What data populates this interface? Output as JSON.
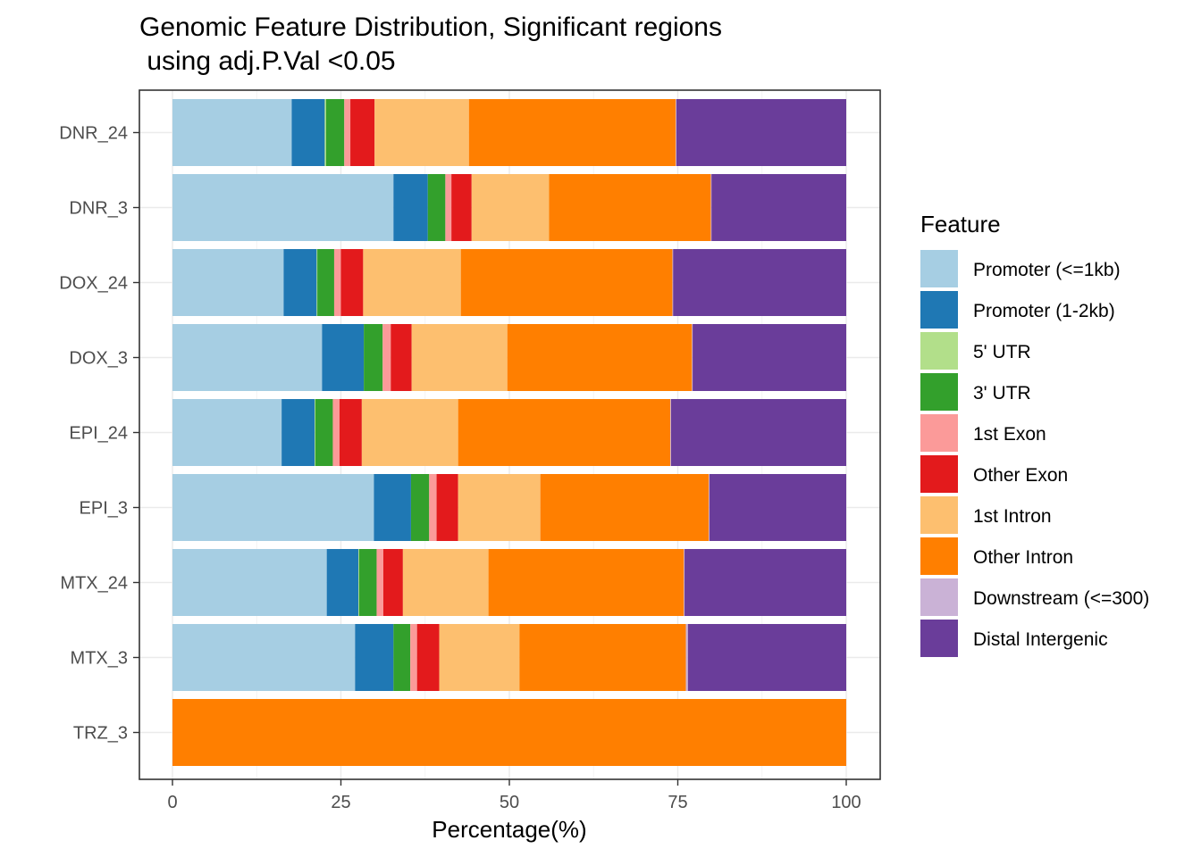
{
  "chart_data": {
    "type": "bar",
    "orientation": "horizontal",
    "stacked": true,
    "title_lines": [
      "Genomic Feature Distribution, Significant regions",
      " using adj.P.Val <0.05"
    ],
    "xlabel": "Percentage(%)",
    "ylabel": "",
    "xlim": [
      0,
      100
    ],
    "x_ticks": [
      "0",
      "25",
      "50",
      "75",
      "100"
    ],
    "x_tick_values": [
      0,
      25,
      50,
      75,
      100
    ],
    "grid": true,
    "legend_position": "right",
    "legend_title": "Feature",
    "categories": [
      "DNR_24",
      "DNR_3",
      "DOX_24",
      "DOX_3",
      "EPI_24",
      "EPI_3",
      "MTX_24",
      "MTX_3",
      "TRZ_3"
    ],
    "series": [
      {
        "name": "Promoter (<=1kb)",
        "color": "#A6CEE3",
        "values": [
          17.7,
          32.8,
          16.5,
          22.2,
          16.2,
          29.9,
          22.9,
          27.1,
          0
        ]
      },
      {
        "name": "Promoter (1-2kb)",
        "color": "#1F78B4",
        "values": [
          4.9,
          5.1,
          4.9,
          6.2,
          4.9,
          5.5,
          4.7,
          5.7,
          0
        ]
      },
      {
        "name": "5' UTR",
        "color": "#B2DF8A",
        "values": [
          0.2,
          0,
          0.1,
          0,
          0.1,
          0,
          0.1,
          0,
          0
        ]
      },
      {
        "name": "3' UTR",
        "color": "#33A02C",
        "values": [
          2.7,
          2.6,
          2.5,
          2.8,
          2.6,
          2.7,
          2.6,
          2.5,
          0
        ]
      },
      {
        "name": "1st Exon",
        "color": "#FB9A99",
        "values": [
          0.9,
          0.9,
          1.0,
          1.2,
          1.0,
          1.1,
          1.0,
          1.0,
          0
        ]
      },
      {
        "name": "Other Exon",
        "color": "#E31A1C",
        "values": [
          3.6,
          3.0,
          3.3,
          3.1,
          3.3,
          3.2,
          2.9,
          3.3,
          0
        ]
      },
      {
        "name": "1st Intron",
        "color": "#FDBF6F",
        "values": [
          14.0,
          11.5,
          14.5,
          14.2,
          14.3,
          12.2,
          12.7,
          11.9,
          0
        ]
      },
      {
        "name": "Other Intron",
        "color": "#FF7F00",
        "values": [
          30.7,
          24.0,
          31.4,
          27.4,
          31.5,
          25.0,
          29.0,
          24.7,
          100
        ]
      },
      {
        "name": "Downstream (<=300)",
        "color": "#CAB2D6",
        "values": [
          0.1,
          0.1,
          0.1,
          0.1,
          0.1,
          0.1,
          0.1,
          0.3,
          0
        ]
      },
      {
        "name": "Distal Intergenic",
        "color": "#6A3D9A",
        "values": [
          25.2,
          20.0,
          25.7,
          22.8,
          26.0,
          20.3,
          24.0,
          23.5,
          0
        ]
      }
    ]
  }
}
